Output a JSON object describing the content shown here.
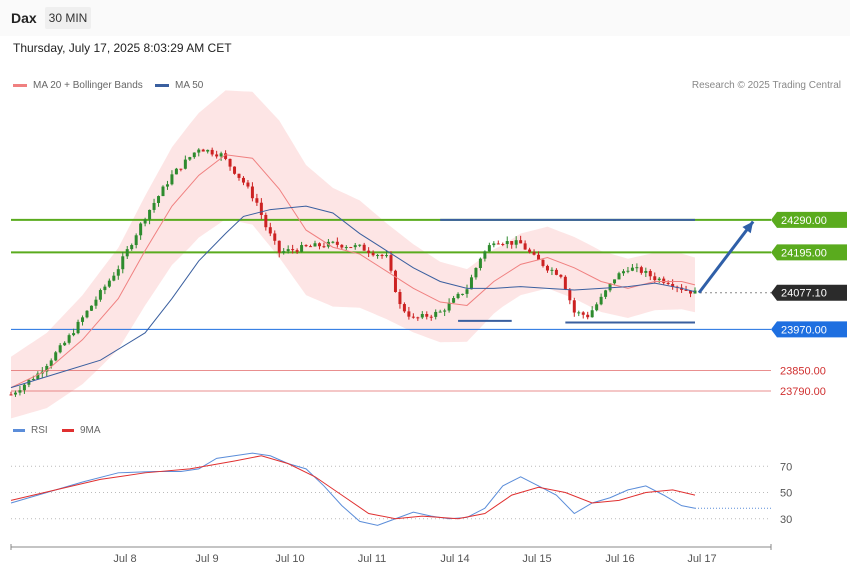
{
  "header": {
    "instrument": "Dax",
    "timeframe": "30 MIN"
  },
  "datetime": "Thursday, July 17, 2025 8:03:29 AM CET",
  "legend": {
    "ma20": {
      "label": "MA 20 + Bollinger Bands",
      "color": "#f08080"
    },
    "ma50": {
      "label": "MA 50",
      "color": "#3a5f9f"
    },
    "credit": "Research © 2025 Trading Central"
  },
  "rsi_legend": {
    "rsi": {
      "label": "RSI",
      "color": "#5b8dd9"
    },
    "ma9": {
      "label": "9MA",
      "color": "#e03030"
    }
  },
  "levels": [
    {
      "value": "24290.00",
      "price": 24290,
      "kind": "resistance",
      "color": "#5aab1e"
    },
    {
      "value": "24195.00",
      "price": 24195,
      "kind": "resistance",
      "color": "#5aab1e"
    },
    {
      "value": "24077.10",
      "price": 24077.1,
      "kind": "current",
      "color": "#2b2b2b"
    },
    {
      "value": "23970.00",
      "price": 23970,
      "kind": "support",
      "color": "#1e6fe0"
    },
    {
      "value": "23850.00",
      "price": 23850,
      "kind": "support2",
      "color": "#e06060"
    },
    {
      "value": "23790.00",
      "price": 23790,
      "kind": "support2",
      "color": "#e06060"
    }
  ],
  "x_labels": [
    "Jul 8",
    "Jul 9",
    "Jul 10",
    "Jul 11",
    "Jul 14",
    "Jul 15",
    "Jul 16",
    "Jul 17"
  ],
  "rsi_ticks": [
    "70",
    "50",
    "30"
  ],
  "chart_data": {
    "type": "candlestick",
    "x_axis": [
      "Jul 8",
      "Jul 9",
      "Jul 10",
      "Jul 11",
      "Jul 14",
      "Jul 15",
      "Jul 16",
      "Jul 17"
    ],
    "price_range": [
      23720,
      24640
    ],
    "price_path": [
      [
        0,
        23780
      ],
      [
        6,
        23840
      ],
      [
        12,
        23930
      ],
      [
        18,
        24040
      ],
      [
        24,
        24150
      ],
      [
        30,
        24300
      ],
      [
        36,
        24420
      ],
      [
        42,
        24500
      ],
      [
        47,
        24480
      ],
      [
        52,
        24400
      ],
      [
        55,
        24340
      ],
      [
        57,
        24270
      ],
      [
        60,
        24195
      ],
      [
        66,
        24210
      ],
      [
        72,
        24220
      ],
      [
        78,
        24210
      ],
      [
        84,
        24180
      ],
      [
        87,
        24040
      ],
      [
        90,
        24000
      ],
      [
        96,
        24020
      ],
      [
        102,
        24090
      ],
      [
        105,
        24180
      ],
      [
        108,
        24230
      ],
      [
        114,
        24220
      ],
      [
        117,
        24180
      ],
      [
        120,
        24150
      ],
      [
        123,
        24130
      ],
      [
        126,
        24020
      ],
      [
        129,
        24010
      ],
      [
        132,
        24060
      ],
      [
        135,
        24120
      ],
      [
        138,
        24150
      ],
      [
        141,
        24140
      ],
      [
        144,
        24120
      ],
      [
        147,
        24110
      ],
      [
        150,
        24090
      ],
      [
        153,
        24077
      ]
    ],
    "ma50_path": [
      [
        0,
        23800
      ],
      [
        10,
        23840
      ],
      [
        20,
        23880
      ],
      [
        30,
        23960
      ],
      [
        36,
        24060
      ],
      [
        42,
        24170
      ],
      [
        48,
        24250
      ],
      [
        52,
        24300
      ],
      [
        58,
        24320
      ],
      [
        66,
        24330
      ],
      [
        72,
        24310
      ],
      [
        78,
        24250
      ],
      [
        84,
        24200
      ],
      [
        90,
        24150
      ],
      [
        96,
        24110
      ],
      [
        102,
        24090
      ],
      [
        108,
        24090
      ],
      [
        114,
        24095
      ],
      [
        120,
        24090
      ],
      [
        126,
        24085
      ],
      [
        132,
        24090
      ],
      [
        138,
        24095
      ],
      [
        144,
        24105
      ],
      [
        150,
        24090
      ],
      [
        153,
        24080
      ]
    ],
    "ma20_path": [
      [
        0,
        23800
      ],
      [
        8,
        23850
      ],
      [
        16,
        23940
      ],
      [
        24,
        24060
      ],
      [
        30,
        24200
      ],
      [
        36,
        24330
      ],
      [
        42,
        24420
      ],
      [
        48,
        24480
      ],
      [
        54,
        24470
      ],
      [
        60,
        24380
      ],
      [
        66,
        24260
      ],
      [
        72,
        24210
      ],
      [
        78,
        24190
      ],
      [
        84,
        24140
      ],
      [
        90,
        24090
      ],
      [
        96,
        24050
      ],
      [
        102,
        24040
      ],
      [
        108,
        24110
      ],
      [
        114,
        24160
      ],
      [
        120,
        24180
      ],
      [
        126,
        24150
      ],
      [
        132,
        24110
      ],
      [
        138,
        24090
      ],
      [
        144,
        24110
      ],
      [
        150,
        24110
      ],
      [
        153,
        24100
      ]
    ],
    "bollinger_width": [
      [
        0,
        90
      ],
      [
        20,
        140
      ],
      [
        40,
        180
      ],
      [
        60,
        200
      ],
      [
        66,
        190
      ],
      [
        84,
        140
      ],
      [
        100,
        110
      ],
      [
        110,
        90
      ],
      [
        130,
        90
      ],
      [
        153,
        80
      ]
    ],
    "trendlines": [
      {
        "from": [
          96,
          24290
        ],
        "to": [
          153,
          24290
        ]
      },
      {
        "from": [
          100,
          23995
        ],
        "to": [
          112,
          23995
        ]
      },
      {
        "from": [
          124,
          23990
        ],
        "to": [
          153,
          23990
        ]
      }
    ],
    "projection": {
      "from": [
        153,
        24077
      ],
      "to": [
        166,
        24285
      ]
    },
    "rsi": [
      [
        0,
        42
      ],
      [
        8,
        50
      ],
      [
        16,
        58
      ],
      [
        24,
        65
      ],
      [
        32,
        66
      ],
      [
        38,
        66
      ],
      [
        42,
        68
      ],
      [
        46,
        76
      ],
      [
        50,
        78
      ],
      [
        54,
        80
      ],
      [
        58,
        78
      ],
      [
        62,
        72
      ],
      [
        66,
        68
      ],
      [
        70,
        55
      ],
      [
        74,
        40
      ],
      [
        78,
        28
      ],
      [
        82,
        25
      ],
      [
        86,
        30
      ],
      [
        90,
        35
      ],
      [
        94,
        32
      ],
      [
        98,
        30
      ],
      [
        102,
        31
      ],
      [
        106,
        38
      ],
      [
        110,
        55
      ],
      [
        114,
        62
      ],
      [
        118,
        55
      ],
      [
        122,
        48
      ],
      [
        126,
        34
      ],
      [
        130,
        42
      ],
      [
        134,
        46
      ],
      [
        138,
        52
      ],
      [
        142,
        55
      ],
      [
        146,
        48
      ],
      [
        150,
        40
      ],
      [
        153,
        38
      ]
    ],
    "rsi_ma9": [
      [
        0,
        44
      ],
      [
        10,
        52
      ],
      [
        20,
        60
      ],
      [
        30,
        65
      ],
      [
        40,
        68
      ],
      [
        50,
        74
      ],
      [
        56,
        78
      ],
      [
        62,
        72
      ],
      [
        68,
        62
      ],
      [
        74,
        48
      ],
      [
        80,
        34
      ],
      [
        86,
        30
      ],
      [
        92,
        32
      ],
      [
        100,
        30
      ],
      [
        106,
        34
      ],
      [
        112,
        48
      ],
      [
        118,
        54
      ],
      [
        124,
        50
      ],
      [
        130,
        42
      ],
      [
        136,
        44
      ],
      [
        142,
        50
      ],
      [
        148,
        52
      ],
      [
        153,
        48
      ]
    ]
  }
}
